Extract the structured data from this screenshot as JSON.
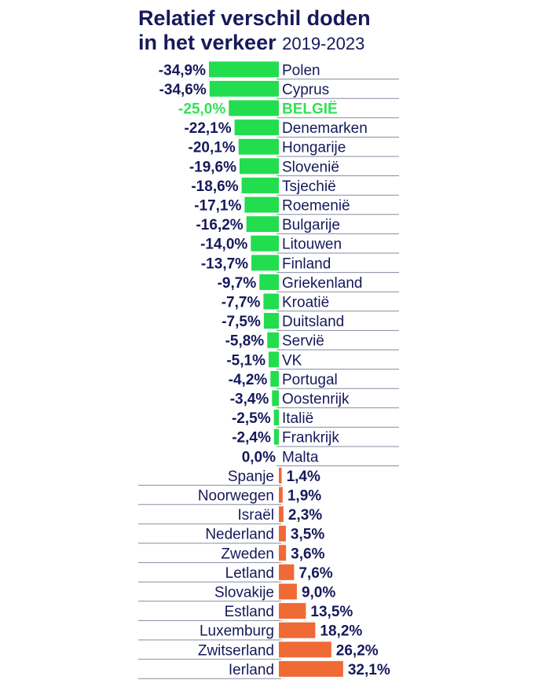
{
  "title_line1": "Relatief verschil doden",
  "title_line2": "in het verkeer",
  "subtitle": "2019-2023",
  "colors": {
    "negative_bar": "#22dd4e",
    "positive_bar": "#f06a36",
    "highlight_text": "#33e055",
    "text": "#16195a",
    "separator": "#8a8aa0"
  },
  "chart_data": {
    "type": "bar",
    "orientation": "horizontal",
    "title": "Relatief verschil doden in het verkeer",
    "subtitle": "2019-2023",
    "unit": "%",
    "highlight": "BELGIË",
    "categories": [
      "Polen",
      "Cyprus",
      "BELGIË",
      "Denemarken",
      "Hongarije",
      "Slovenië",
      "Tsjechië",
      "Roemenië",
      "Bulgarije",
      "Litouwen",
      "Finland",
      "Griekenland",
      "Kroatië",
      "Duitsland",
      "Servië",
      "VK",
      "Portugal",
      "Oostenrijk",
      "Italië",
      "Frankrijk",
      "Malta",
      "Spanje",
      "Noorwegen",
      "Israël",
      "Nederland",
      "Zweden",
      "Letland",
      "Slovakije",
      "Estland",
      "Luxemburg",
      "Zwitserland",
      "Ierland"
    ],
    "values": [
      -34.9,
      -34.6,
      -25.0,
      -22.1,
      -20.1,
      -19.6,
      -18.6,
      -17.1,
      -16.2,
      -14.0,
      -13.7,
      -9.7,
      -7.7,
      -7.5,
      -5.8,
      -5.1,
      -4.2,
      -3.4,
      -2.5,
      -2.4,
      0.0,
      1.4,
      1.9,
      2.3,
      3.5,
      3.6,
      7.6,
      9.0,
      13.5,
      18.2,
      26.2,
      32.1
    ],
    "value_labels": [
      "-34,9%",
      "-34,6%",
      "-25,0%",
      "-22,1%",
      "-20,1%",
      "-19,6%",
      "-18,6%",
      "-17,1%",
      "-16,2%",
      "-14,0%",
      "-13,7%",
      "-9,7%",
      "-7,7%",
      "-7,5%",
      "-5,8%",
      "-5,1%",
      "-4,2%",
      "-3,4%",
      "-2,5%",
      "-2,4%",
      "0,0%",
      "1,4%",
      "1,9%",
      "2,3%",
      "3,5%",
      "3,6%",
      "7,6%",
      "9,0%",
      "13,5%",
      "18,2%",
      "26,2%",
      "32,1%"
    ]
  }
}
